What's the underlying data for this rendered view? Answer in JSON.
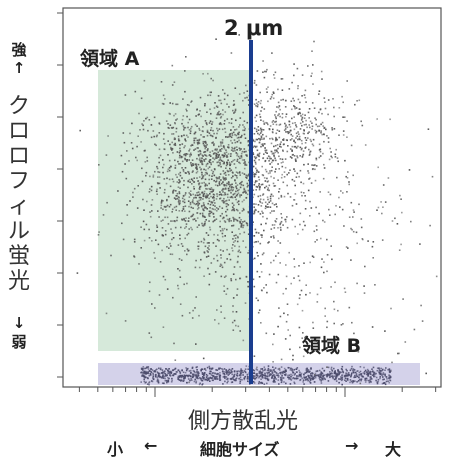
{
  "chart_data": {
    "type": "scatter",
    "title": "",
    "xlabel": "側方散乱光",
    "ylabel": "クロロフィル蛍光",
    "y_high_label": "強",
    "y_high_arrow": "↑",
    "y_low_arrow": "↓",
    "y_low_label": "弱",
    "x_scale": "log",
    "x_sub_label": {
      "left": "小",
      "left_arrow": "←",
      "center": "細胞サイズ",
      "right_arrow": "→",
      "right": "大"
    },
    "marker": {
      "label": "2 μm",
      "color": "#1a3d8f"
    },
    "regions": [
      {
        "name": "領域 A",
        "color": "#cfe5d3"
      },
      {
        "name": "領域 B",
        "color": "#cfcde8"
      }
    ],
    "grid": false,
    "clusters": [
      {
        "name": "high-fluorescence population",
        "n": 1600
      },
      {
        "name": "upper-right population",
        "n": 350
      },
      {
        "name": "scattered population",
        "n": 500
      },
      {
        "name": "low-fluorescence band",
        "n": 1100
      }
    ]
  }
}
